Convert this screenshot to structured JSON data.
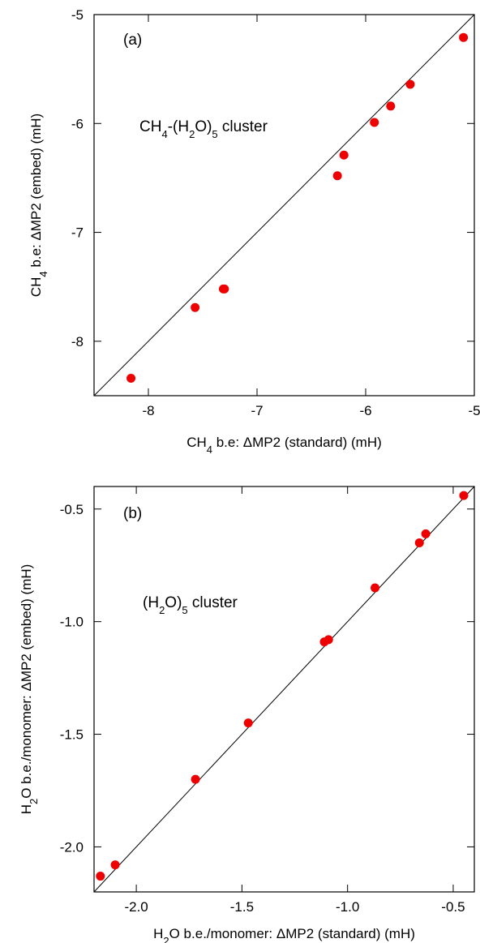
{
  "chart_data": [
    {
      "type": "scatter",
      "panel_label": "(a)",
      "annotation": "CH4-(H2O)5 cluster",
      "annotation_parts": {
        "pre": "CH",
        "sub1": "4",
        "mid": "-(H",
        "sub2": "2",
        "mid2": "O)",
        "sub3": "5",
        "post": " cluster"
      },
      "xlabel": "CH4 b.e: ΔMP2 (standard) (mH)",
      "xlabel_parts": {
        "pre": "CH",
        "sub": "4",
        "post": " b.e: ΔMP2 (standard) (mH)"
      },
      "ylabel": "CH4 b.e: ΔMP2 (embed) (mH)",
      "ylabel_parts": {
        "pre": "CH",
        "sub": "4",
        "post": " b.e: ΔMP2 (embed) (mH)"
      },
      "xlim": [
        -8.5,
        -5.0
      ],
      "ylim": [
        -8.5,
        -5.0
      ],
      "xticks": [
        -8,
        -7,
        -6,
        -5
      ],
      "yticks": [
        -8,
        -7,
        -6,
        -5
      ],
      "xtick_labels": [
        "-8",
        "-7",
        "-6",
        "-5"
      ],
      "ytick_labels": [
        "-8",
        "-7",
        "-6",
        "-5"
      ],
      "reference_line": "y = x",
      "marker_color": "#ee0000",
      "points": [
        {
          "x": -8.16,
          "y": -8.34
        },
        {
          "x": -7.57,
          "y": -7.69
        },
        {
          "x": -7.31,
          "y": -7.52
        },
        {
          "x": -7.3,
          "y": -7.52
        },
        {
          "x": -6.26,
          "y": -6.48
        },
        {
          "x": -6.2,
          "y": -6.29
        },
        {
          "x": -5.92,
          "y": -5.99
        },
        {
          "x": -5.77,
          "y": -5.84
        },
        {
          "x": -5.59,
          "y": -5.64
        },
        {
          "x": -5.1,
          "y": -5.21
        }
      ]
    },
    {
      "type": "scatter",
      "panel_label": "(b)",
      "annotation": "(H2O)5 cluster",
      "annotation_parts": {
        "pre": "(H",
        "sub1": "2",
        "mid": "O)",
        "sub2": "5",
        "post": " cluster"
      },
      "xlabel": "H2O b.e./monomer: ΔMP2 (standard) (mH)",
      "xlabel_parts": {
        "pre": "H",
        "sub": "2",
        "post": "O b.e./monomer: ΔMP2 (standard) (mH)"
      },
      "ylabel": "H2O b.e./monomer: ΔMP2 (embed) (mH)",
      "ylabel_parts": {
        "pre": "H",
        "sub": "2",
        "post": "O b.e./monomer: ΔMP2 (embed) (mH)"
      },
      "xlim": [
        -2.2,
        -0.4
      ],
      "ylim": [
        -2.2,
        -0.4
      ],
      "xticks": [
        -2.0,
        -1.5,
        -1.0,
        -0.5
      ],
      "yticks": [
        -2.0,
        -1.5,
        -1.0,
        -0.5
      ],
      "xtick_labels": [
        "-2.0",
        "-1.5",
        "-1.0",
        "-0.5"
      ],
      "ytick_labels": [
        "-2.0",
        "-1.5",
        "-1.0",
        "-0.5"
      ],
      "reference_line": "y = x",
      "marker_color": "#ee0000",
      "points": [
        {
          "x": -2.17,
          "y": -2.13
        },
        {
          "x": -2.1,
          "y": -2.08
        },
        {
          "x": -1.72,
          "y": -1.7
        },
        {
          "x": -1.47,
          "y": -1.45
        },
        {
          "x": -1.11,
          "y": -1.09
        },
        {
          "x": -1.09,
          "y": -1.08
        },
        {
          "x": -0.87,
          "y": -0.85
        },
        {
          "x": -0.66,
          "y": -0.65
        },
        {
          "x": -0.63,
          "y": -0.61
        },
        {
          "x": -0.45,
          "y": -0.44
        }
      ]
    }
  ]
}
